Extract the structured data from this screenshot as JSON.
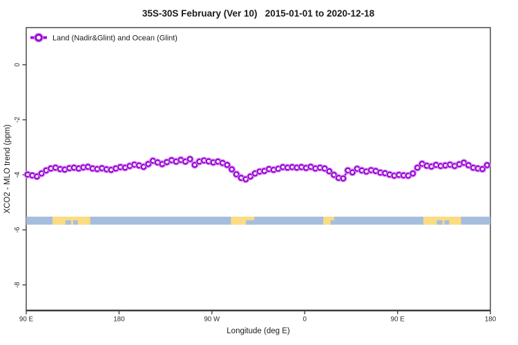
{
  "chart_data": {
    "type": "line",
    "title": "35S-30S February (Ver 10)   2015-01-01 to 2020-12-18",
    "xlabel": "Longitude (deg E)",
    "ylabel": "XCO2 - MLO trend (ppm)",
    "xlim": [
      90,
      540
    ],
    "ylim": [
      -8.93,
      1.35
    ],
    "grid": false,
    "legend_position": "top-left-inside",
    "xticks": {
      "values": [
        90,
        180,
        270,
        360,
        450,
        540
      ],
      "labels": [
        "90 E",
        "180",
        "90 W",
        "0",
        "90 E",
        "180"
      ]
    },
    "yticks": {
      "values": [
        0,
        -2,
        -4,
        -6,
        -8
      ],
      "labels": [
        "0",
        "-2",
        "-4",
        "-6",
        "-8"
      ]
    },
    "series": [
      {
        "name": "Land (Nadir&Glint) and Ocean (Glint)",
        "marker": "open-circle",
        "color": "#9400d3",
        "halo_color": "#d37ef0",
        "x": [
          91.3,
          95.8,
          100.3,
          104.8,
          109.3,
          113.8,
          118.3,
          122.8,
          127.3,
          131.8,
          136.3,
          140.8,
          145.3,
          149.8,
          154.3,
          158.8,
          163.3,
          167.8,
          172.3,
          176.8,
          181.3,
          185.8,
          190.3,
          194.8,
          199.3,
          203.8,
          208.3,
          212.8,
          217.3,
          221.8,
          226.3,
          230.8,
          235.3,
          239.8,
          244.3,
          248.8,
          253.3,
          257.8,
          262.3,
          266.8,
          271.3,
          275.8,
          280.3,
          284.8,
          289.3,
          293.8,
          298.3,
          302.8,
          307.3,
          311.8,
          316.3,
          320.8,
          325.3,
          329.8,
          334.3,
          338.8,
          343.3,
          347.8,
          352.3,
          356.8,
          361.3,
          365.8,
          370.3,
          374.8,
          379.3,
          383.8,
          388.3,
          392.8,
          397.3,
          401.8,
          406.3,
          410.8,
          415.3,
          419.8,
          424.3,
          428.8,
          433.3,
          437.8,
          442.3,
          446.8,
          451.3,
          455.8,
          460.3,
          464.8,
          469.3,
          473.8,
          478.3,
          482.8,
          487.3,
          491.8,
          496.3,
          500.8,
          505.3,
          509.8,
          514.3,
          518.8,
          523.3,
          527.8,
          532.3,
          536.8
        ],
        "y": [
          -3.99,
          -4.02,
          -4.06,
          -3.95,
          -3.84,
          -3.77,
          -3.74,
          -3.79,
          -3.81,
          -3.76,
          -3.74,
          -3.77,
          -3.73,
          -3.71,
          -3.77,
          -3.79,
          -3.76,
          -3.8,
          -3.82,
          -3.77,
          -3.72,
          -3.74,
          -3.68,
          -3.63,
          -3.66,
          -3.71,
          -3.61,
          -3.49,
          -3.55,
          -3.61,
          -3.54,
          -3.47,
          -3.52,
          -3.46,
          -3.52,
          -3.43,
          -3.64,
          -3.52,
          -3.48,
          -3.51,
          -3.55,
          -3.52,
          -3.57,
          -3.64,
          -3.8,
          -3.98,
          -4.11,
          -4.16,
          -4.06,
          -3.95,
          -3.88,
          -3.86,
          -3.79,
          -3.82,
          -3.78,
          -3.72,
          -3.74,
          -3.72,
          -3.74,
          -3.72,
          -3.75,
          -3.71,
          -3.77,
          -3.74,
          -3.77,
          -3.87,
          -4.0,
          -4.11,
          -4.13,
          -3.84,
          -3.91,
          -3.78,
          -3.84,
          -3.88,
          -3.83,
          -3.86,
          -3.92,
          -3.94,
          -3.99,
          -4.03,
          -4.0,
          -4.02,
          -4.03,
          -3.95,
          -3.74,
          -3.6,
          -3.67,
          -3.7,
          -3.64,
          -3.68,
          -3.66,
          -3.63,
          -3.68,
          -3.62,
          -3.56,
          -3.65,
          -3.74,
          -3.77,
          -3.79,
          -3.65
        ]
      }
    ],
    "map_band": {
      "description": "35S-30S latitude strip world map, ocean vs land",
      "value_top": -5.52,
      "value_bottom": -5.81,
      "ocean_color": "#a6bedd",
      "land_color": "#fcdc80",
      "land_segments": [
        {
          "name": "australia",
          "lon": [
            115.5,
            152.0
          ],
          "notches": [
            [
              128.0,
              133.5
            ],
            [
              135.5,
              140.0
            ]
          ]
        },
        {
          "name": "south-america",
          "lon": [
            288.5,
            311.0
          ],
          "notches": [
            [
              303.0,
              311.0
            ]
          ]
        },
        {
          "name": "africa",
          "lon": [
            378.0,
            388.5
          ],
          "notches": [
            [
              385.0,
              388.5
            ]
          ]
        },
        {
          "name": "australia-wrap",
          "lon": [
            475.0,
            511.5
          ],
          "notches": [
            [
              488.0,
              493.5
            ],
            [
              495.5,
              500.0
            ]
          ]
        }
      ]
    },
    "frame_color": "#3d3d3d"
  }
}
